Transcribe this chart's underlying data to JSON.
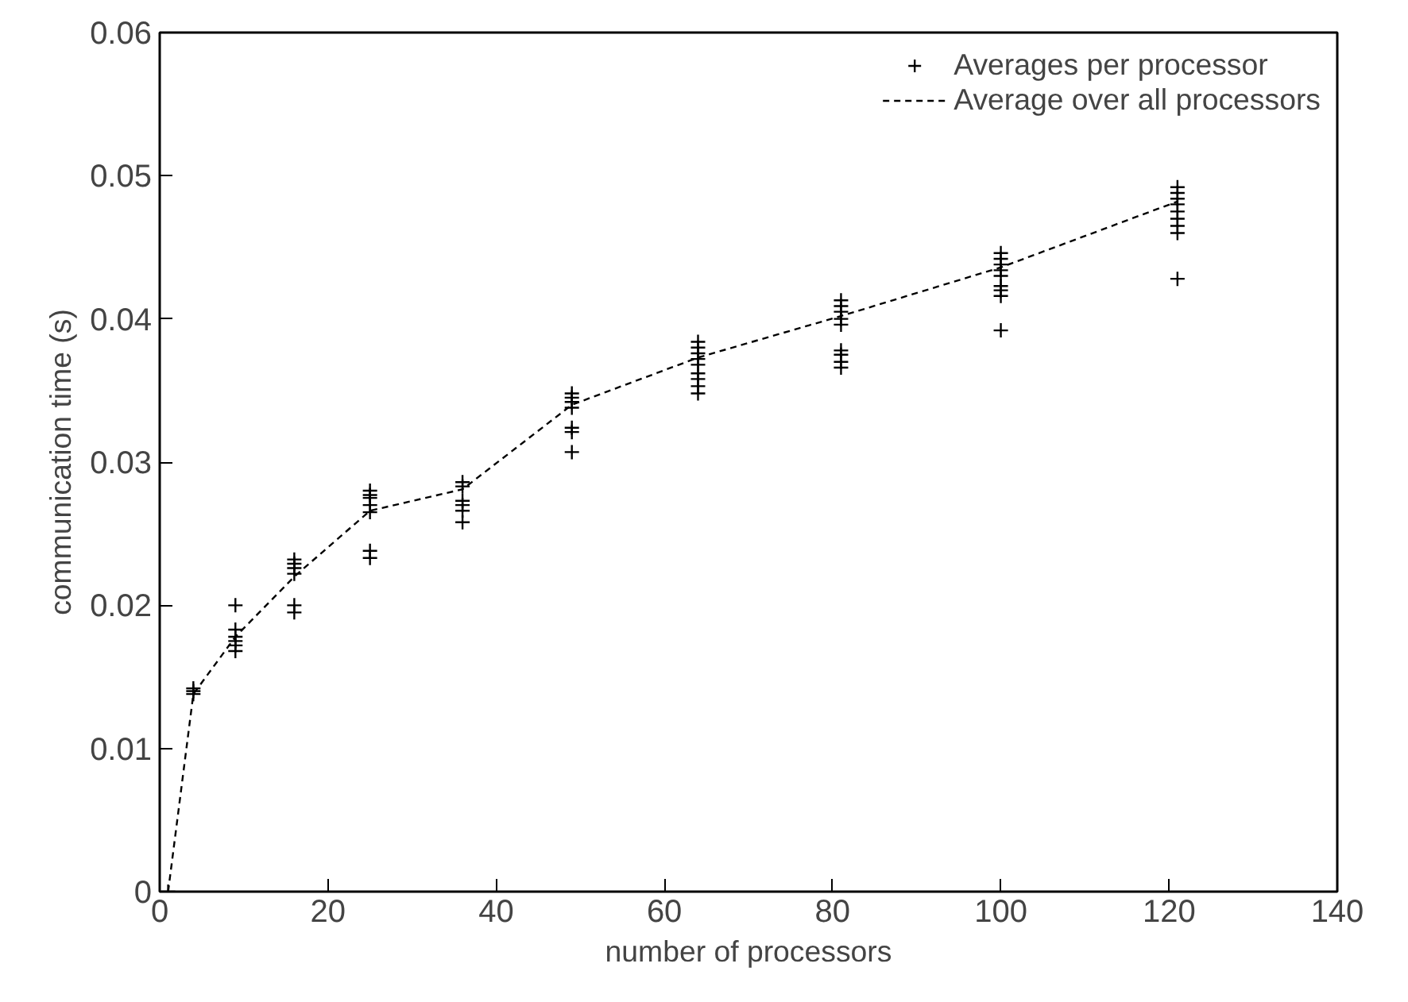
{
  "chart_data": {
    "type": "scatter",
    "xlabel": "number of processors",
    "ylabel": "communication time (s)",
    "xlim": [
      0,
      140
    ],
    "xticks": [
      0,
      20,
      40,
      60,
      80,
      100,
      120,
      140
    ],
    "ylim": [
      0,
      0.06
    ],
    "yticks": [
      0,
      0.01,
      0.02,
      0.03,
      0.04,
      0.05,
      0.06
    ],
    "grid": false,
    "legend": "top right",
    "series": [
      {
        "name": "Averages per processor",
        "marker": "cross",
        "color": "#000000",
        "x": [
          1,
          4,
          4,
          4,
          9,
          9,
          9,
          9,
          9,
          9,
          16,
          16,
          16,
          16,
          16,
          16,
          25,
          25,
          25,
          25,
          25,
          25,
          25,
          36,
          36,
          36,
          36,
          36,
          36,
          49,
          49,
          49,
          49,
          49,
          49,
          49,
          64,
          64,
          64,
          64,
          64,
          64,
          64,
          64,
          64,
          81,
          81,
          81,
          81,
          81,
          81,
          81,
          81,
          81,
          100,
          100,
          100,
          100,
          100,
          100,
          100,
          100,
          100,
          121,
          121,
          121,
          121,
          121,
          121,
          121,
          121,
          121
        ],
        "values": [
          0,
          0.014,
          0.0142,
          0.0138,
          0.02,
          0.0183,
          0.0178,
          0.0175,
          0.0172,
          0.0168,
          0.0232,
          0.0229,
          0.0226,
          0.0222,
          0.02,
          0.0195,
          0.028,
          0.0277,
          0.0275,
          0.027,
          0.0265,
          0.0238,
          0.0233,
          0.0286,
          0.0283,
          0.0273,
          0.027,
          0.0266,
          0.0258,
          0.0348,
          0.0345,
          0.0342,
          0.0338,
          0.0324,
          0.0321,
          0.0307,
          0.0384,
          0.038,
          0.0376,
          0.0372,
          0.0368,
          0.0362,
          0.0358,
          0.0353,
          0.0348,
          0.0413,
          0.0409,
          0.0405,
          0.04,
          0.0396,
          0.0378,
          0.0375,
          0.037,
          0.0366,
          0.0446,
          0.0442,
          0.0438,
          0.0434,
          0.043,
          0.0423,
          0.042,
          0.0416,
          0.0392,
          0.0492,
          0.0488,
          0.0484,
          0.048,
          0.0475,
          0.047,
          0.0465,
          0.046,
          0.0428
        ]
      },
      {
        "name": "Average over all processors",
        "type": "line",
        "line_style": "dashed",
        "color": "#000000",
        "x": [
          1,
          4,
          9,
          16,
          25,
          36,
          49,
          64,
          81,
          100,
          121
        ],
        "values": [
          0,
          0.0138,
          0.0178,
          0.022,
          0.0266,
          0.0281,
          0.034,
          0.0373,
          0.0402,
          0.0436,
          0.0482
        ]
      }
    ]
  }
}
